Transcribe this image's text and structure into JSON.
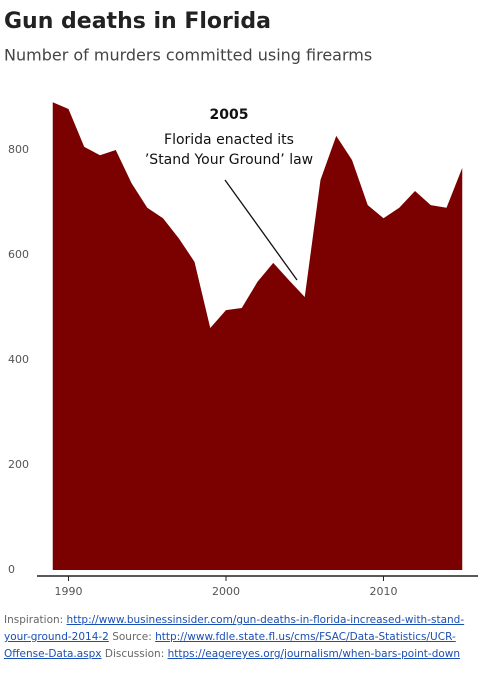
{
  "chart_data": {
    "type": "area",
    "title": "Gun deaths in Florida",
    "subtitle": "Number of murders committed using firearms",
    "x": [
      1989,
      1990,
      1991,
      1992,
      1993,
      1994,
      1995,
      1996,
      1997,
      1998,
      1999,
      2000,
      2001,
      2002,
      2003,
      2004,
      2005,
      2006,
      2007,
      2008,
      2009,
      2010,
      2011,
      2012,
      2013,
      2014,
      2015
    ],
    "values": [
      891,
      878,
      806,
      790,
      800,
      737,
      690,
      670,
      632,
      587,
      461,
      495,
      499,
      549,
      585,
      552,
      520,
      743,
      827,
      781,
      695,
      670,
      690,
      722,
      695,
      690,
      766
    ],
    "color": "#7b0000",
    "xlim": [
      1988,
      2016
    ],
    "xticks": [
      1990,
      2000,
      2010
    ],
    "ylim": [
      0,
      900
    ],
    "yticks": [
      0,
      200,
      400,
      600,
      800
    ],
    "grid": false,
    "annotation": {
      "title": "2005",
      "lines": [
        "Florida enacted its",
        "’Stand Your Ground’ law"
      ]
    }
  },
  "footer": [
    {
      "text": "Inspiration: "
    },
    {
      "link": "http://www.businessinsider.com/gun-deaths-in-florida-increased-with-stand-your-ground-2014-2"
    },
    {
      "text": " Source: "
    },
    {
      "link": "http://www.fdle.state.fl.us/cms/FSAC/Data-Statistics/UCR-Offense-Data.aspx"
    },
    {
      "text": " Discussion: "
    },
    {
      "link": "https://eagereyes.org/journalism/when-bars-point-down"
    }
  ]
}
